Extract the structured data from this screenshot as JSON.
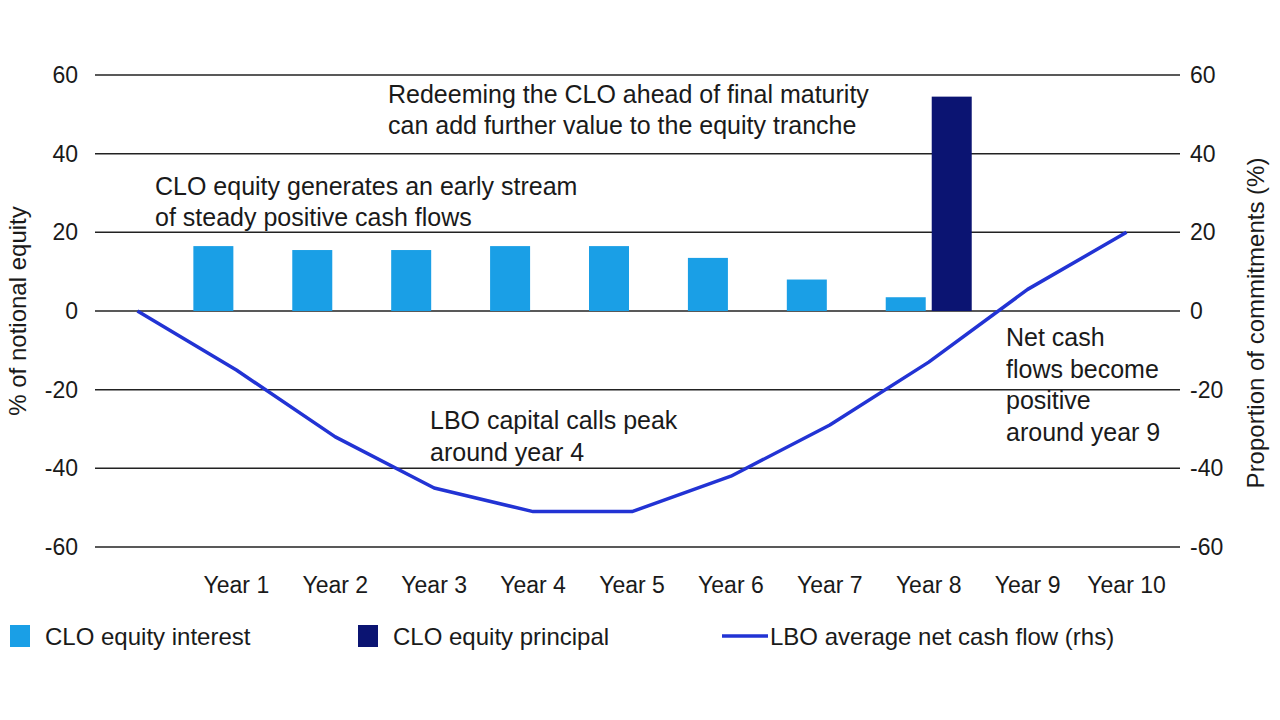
{
  "chart_data": {
    "type": "bar",
    "categories": [
      null,
      "Year 1",
      "Year 2",
      "Year 3",
      "Year 4",
      "Year 5",
      "Year 6",
      "Year 7",
      "Year 8",
      "Year 9",
      "Year 10"
    ],
    "ylabel": "% of notional equity",
    "y2label": "Proportion of commitments (%)",
    "ylim": [
      -60,
      60
    ],
    "yticks": [
      -60,
      -40,
      -20,
      0,
      20,
      40,
      60
    ],
    "y2lim": [
      -60,
      60
    ],
    "y2ticks": [
      -60,
      -40,
      -20,
      0,
      20,
      40,
      60
    ],
    "grid": true,
    "legend": "bottom",
    "series": [
      {
        "name": "CLO equity interest",
        "type": "bar",
        "color": "#1a9fe6",
        "values": [
          null,
          16.5,
          15.5,
          15.5,
          16.5,
          16.5,
          13.5,
          8,
          3.5,
          null,
          null
        ]
      },
      {
        "name": "CLO equity principal",
        "type": "bar",
        "color": "#0b1472",
        "values": [
          null,
          null,
          null,
          null,
          null,
          null,
          null,
          null,
          54.5,
          null,
          null
        ]
      },
      {
        "name": "LBO average net cash flow (rhs)",
        "type": "line",
        "axis": "y2",
        "color": "#2233d4",
        "line_style": "solid",
        "values": [
          0,
          -15,
          -32,
          -45,
          -51,
          -51,
          -42,
          -29,
          -13,
          5.5,
          20
        ]
      }
    ],
    "annotations": [
      {
        "text": [
          "Redeeming the CLO ahead of final maturity",
          "can add further value to the equity tranche"
        ]
      },
      {
        "text": [
          "CLO equity generates an early stream",
          "of steady positive cash flows"
        ]
      },
      {
        "text": [
          "LBO capital calls peak",
          "around year 4"
        ]
      },
      {
        "text": [
          "Net cash",
          "flows become",
          "positive",
          "around year 9"
        ]
      }
    ]
  }
}
